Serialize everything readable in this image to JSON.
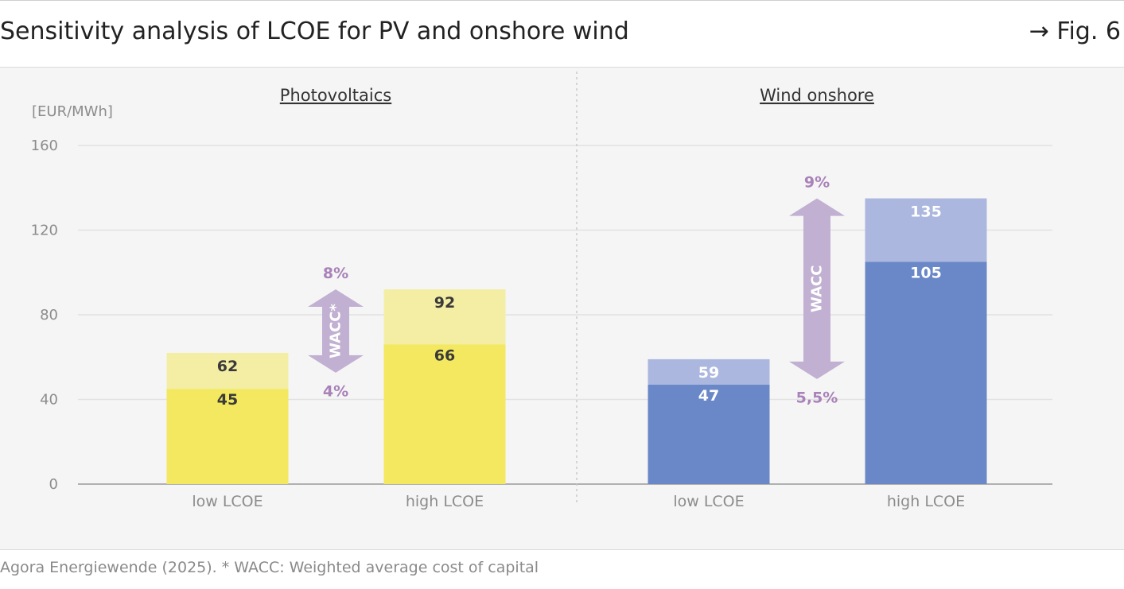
{
  "header": {
    "title": "Sensitivity analysis of LCOE for PV and onshore wind",
    "fig_ref": "→ Fig. 6"
  },
  "footer": {
    "source": "Agora Energiewende (2025). * WACC: Weighted average cost of capital"
  },
  "chart_data": {
    "type": "bar",
    "unit_label": "[EUR/MWh]",
    "ylim": [
      0,
      160
    ],
    "yticks": [
      "0",
      "40",
      "80",
      "120",
      "160"
    ],
    "grid": true,
    "panels": [
      {
        "name": "Photovoltaics",
        "categories": [
          "low LCOE",
          "high LCOE"
        ],
        "base_values": [
          45,
          66
        ],
        "top_values": [
          62,
          92
        ],
        "base_labels": [
          "45",
          "66"
        ],
        "top_labels": [
          "62",
          "92"
        ],
        "arrow": {
          "label": "WACC*",
          "low_label": "4%",
          "high_label": "8%"
        },
        "colors": {
          "base": "#f3e85f",
          "top": "#f4eea5",
          "label": "#3a3a3a"
        }
      },
      {
        "name": "Wind onshore",
        "categories": [
          "low LCOE",
          "high LCOE"
        ],
        "base_values": [
          47,
          105
        ],
        "top_values": [
          59,
          135
        ],
        "base_labels": [
          "47",
          "105"
        ],
        "top_labels": [
          "59",
          "135"
        ],
        "arrow": {
          "label": "WACC",
          "low_label": "5,5%",
          "high_label": "9%"
        },
        "colors": {
          "base": "#6a88c7",
          "top": "#abb7de",
          "label": "#ffffff"
        }
      }
    ],
    "colors": {
      "arrow": "#c1b0d2",
      "arrow_text": "#a882b8",
      "grid": "#e2e2e2",
      "axis": "#9a9a9a",
      "tick": "#8c8c8c"
    }
  }
}
